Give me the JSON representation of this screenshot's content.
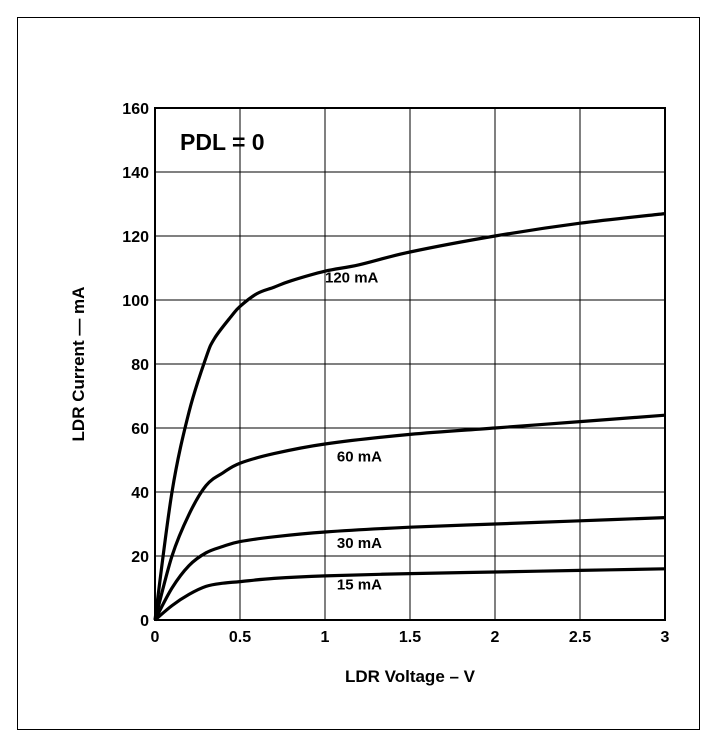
{
  "chart_data": {
    "type": "line",
    "title": "",
    "xlabel": "LDR Voltage – V",
    "ylabel": "LDR Current — mA",
    "xlim": [
      0,
      3
    ],
    "ylim": [
      0,
      160
    ],
    "x_ticks": [
      "0",
      "0.5",
      "1",
      "1.5",
      "2",
      "2.5",
      "3"
    ],
    "y_ticks": [
      "0",
      "20",
      "40",
      "60",
      "80",
      "100",
      "120",
      "140",
      "160"
    ],
    "grid": true,
    "annotation": "PDL = 0",
    "series": [
      {
        "name": "120 mA",
        "x": [
          0,
          0.1,
          0.2,
          0.3,
          0.35,
          0.45,
          0.5,
          0.6,
          0.7,
          0.8,
          1.0,
          1.2,
          1.5,
          2.0,
          2.5,
          3.0
        ],
        "y": [
          0,
          40,
          65,
          82,
          88,
          95,
          98,
          102,
          104,
          106,
          109,
          111,
          115,
          120,
          124,
          127
        ]
      },
      {
        "name": "60 mA",
        "x": [
          0,
          0.1,
          0.2,
          0.3,
          0.4,
          0.5,
          0.7,
          1.0,
          1.5,
          2.0,
          2.5,
          3.0
        ],
        "y": [
          0,
          20,
          33,
          42,
          46,
          49,
          52,
          55,
          58,
          60,
          62,
          64
        ]
      },
      {
        "name": "30 mA",
        "x": [
          0,
          0.1,
          0.2,
          0.3,
          0.4,
          0.5,
          0.7,
          1.0,
          1.5,
          2.0,
          2.5,
          3.0
        ],
        "y": [
          0,
          10,
          17,
          21,
          23,
          24.5,
          26,
          27.5,
          29,
          30,
          31,
          32
        ]
      },
      {
        "name": "15 mA",
        "x": [
          0,
          0.1,
          0.2,
          0.3,
          0.4,
          0.5,
          0.7,
          1.0,
          1.5,
          2.0,
          2.5,
          3.0
        ],
        "y": [
          0,
          4.5,
          8,
          10.5,
          11.5,
          12,
          13,
          13.8,
          14.5,
          15,
          15.5,
          16
        ]
      }
    ]
  }
}
